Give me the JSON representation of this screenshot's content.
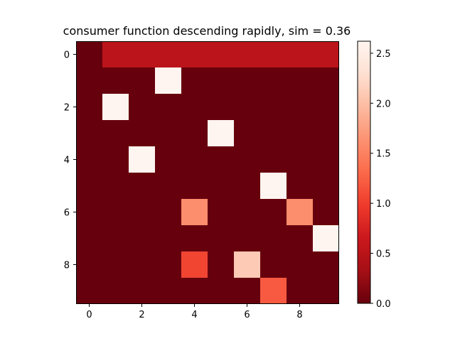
{
  "chart_data": {
    "type": "heatmap",
    "title": "consumer function descending rapidly, sim = 0.36",
    "xlabel": "",
    "ylabel": "",
    "rows": 10,
    "cols": 10,
    "x_ticks": [
      0,
      2,
      4,
      6,
      8
    ],
    "y_ticks": [
      0,
      2,
      4,
      6,
      8
    ],
    "x_tick_labels": [
      "0",
      "2",
      "4",
      "6",
      "8"
    ],
    "y_tick_labels": [
      "0",
      "2",
      "4",
      "6",
      "8"
    ],
    "colormap": "Reds_r",
    "colormap_stops": [
      "#67000d",
      "#a50f15",
      "#cb181d",
      "#ef3b2c",
      "#fb6a4a",
      "#fc9272",
      "#fcbba1",
      "#fee0d2",
      "#fff5f0"
    ],
    "vmin": 0.0,
    "vmax": 2.62,
    "colorbar_ticks": [
      0.0,
      0.5,
      1.0,
      1.5,
      2.0,
      2.5
    ],
    "colorbar_tick_labels": [
      "0.0",
      "0.5",
      "1.0",
      "1.5",
      "2.0",
      "2.5"
    ],
    "values": [
      [
        0,
        0.52,
        0.52,
        0.52,
        0.52,
        0.52,
        0.52,
        0.52,
        0.52,
        0.52
      ],
      [
        0,
        0,
        0,
        2.62,
        0,
        0,
        0,
        0,
        0,
        0
      ],
      [
        0,
        2.62,
        0,
        0,
        0,
        0,
        0,
        0,
        0,
        0
      ],
      [
        0,
        0,
        0,
        0,
        0,
        2.62,
        0,
        0,
        0,
        0
      ],
      [
        0,
        0,
        2.62,
        0,
        0,
        0,
        0,
        0,
        0,
        0
      ],
      [
        0,
        0,
        0,
        0,
        0,
        0,
        0,
        2.62,
        0,
        0
      ],
      [
        0,
        0,
        0,
        0,
        1.6,
        0,
        0,
        0,
        1.6,
        0
      ],
      [
        0,
        0,
        0,
        0,
        0,
        0,
        0,
        0,
        0,
        2.62
      ],
      [
        0,
        0,
        0,
        0,
        1.05,
        0,
        2.1,
        0,
        0,
        0
      ],
      [
        0,
        0,
        0,
        0,
        0,
        0,
        0,
        1.2,
        0,
        0
      ]
    ]
  }
}
